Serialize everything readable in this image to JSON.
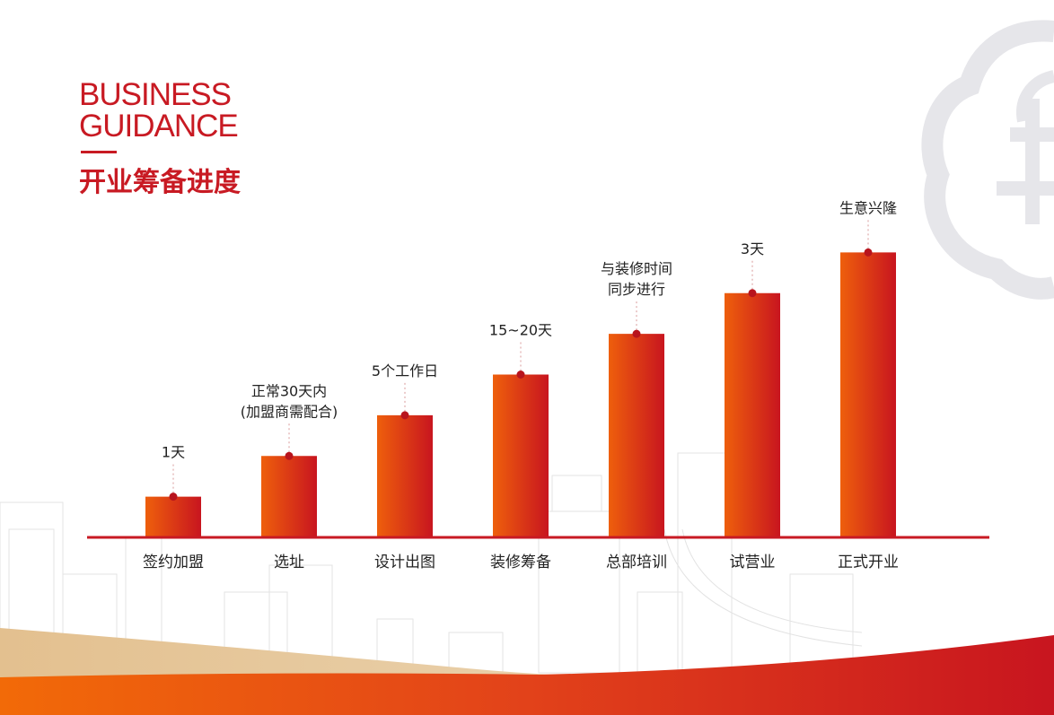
{
  "header": {
    "title_en_line1": "BUSINESS",
    "title_en_line2": "GUIDANCE",
    "title_cn": "开业筹备进度"
  },
  "colors": {
    "brand_red": "#c81a23",
    "bar_start": "#ee5f0c",
    "bar_end": "#c8151f",
    "band_gold": "#e6c69a",
    "band_orange": "#f0620a"
  },
  "chart_data": {
    "type": "bar",
    "title": "",
    "xlabel": "",
    "ylabel": "",
    "categories": [
      "签约加盟",
      "选址",
      "设计出图",
      "装修筹备",
      "总部培训",
      "试营业",
      "正式开业"
    ],
    "values": [
      1,
      2,
      3,
      4,
      5,
      6,
      7
    ],
    "ylim": [
      0,
      8
    ],
    "grid": false,
    "data_labels": [
      [
        "1天"
      ],
      [
        "正常30天内",
        "(加盟商需配合)"
      ],
      [
        "5个工作日"
      ],
      [
        "15~20天"
      ],
      [
        "与装修时间",
        "同步进行"
      ],
      [
        "3天"
      ],
      [
        "生意兴隆"
      ]
    ]
  }
}
